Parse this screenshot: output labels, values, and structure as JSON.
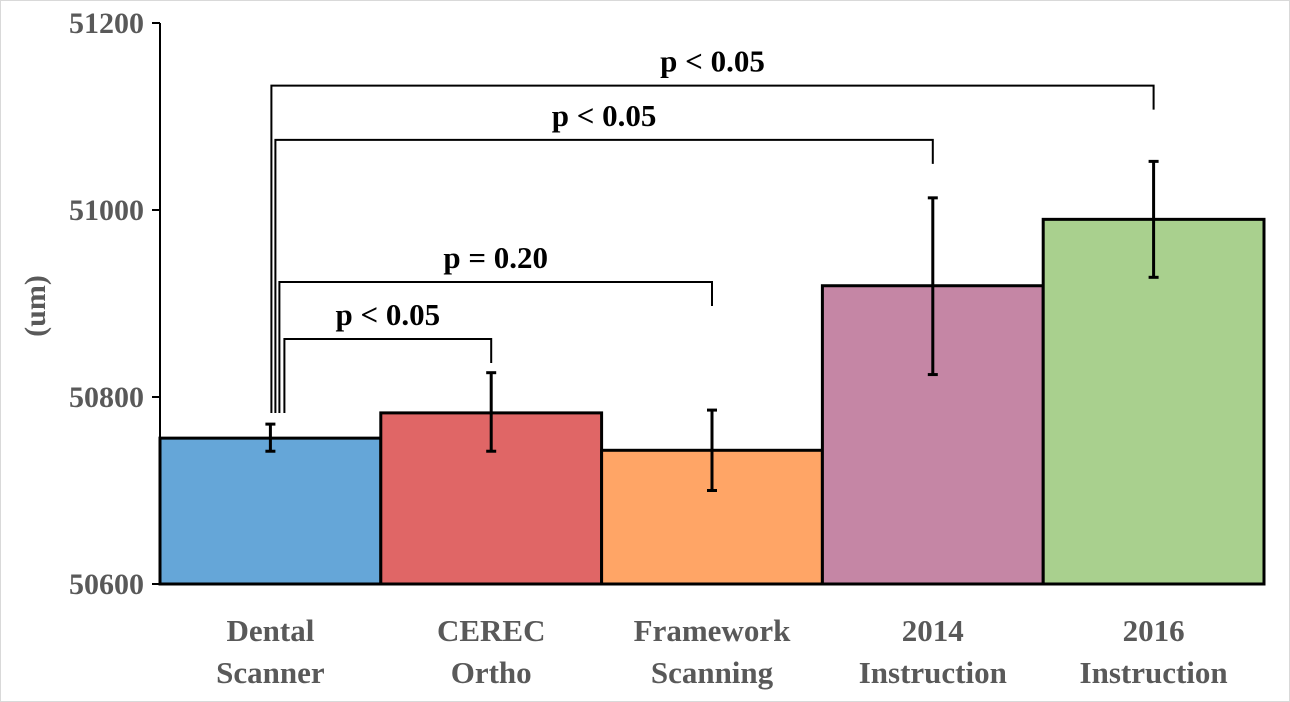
{
  "chart_data": {
    "type": "bar",
    "title": "",
    "xlabel": "",
    "ylabel": "(um)",
    "ylim": [
      50600,
      51200
    ],
    "yticks": [
      "50600",
      "50800",
      "51000",
      "51200"
    ],
    "grid": false,
    "categories": [
      [
        "Dental",
        "Scanner"
      ],
      [
        "CEREC",
        "Ortho"
      ],
      [
        "Framework",
        "Scanning"
      ],
      [
        "2014",
        "Instruction"
      ],
      [
        "2016",
        "Instruction"
      ]
    ],
    "values": [
      50756,
      50783,
      50743,
      50919,
      50990
    ],
    "errors": [
      [
        50742,
        50771
      ],
      [
        50742,
        50826
      ],
      [
        50700,
        50786
      ],
      [
        50824,
        51013
      ],
      [
        50928,
        51052
      ]
    ],
    "colors": [
      "#65a6d8",
      "#e06666",
      "#ffa566",
      "#c586a5",
      "#a9d08e"
    ],
    "annotations": [
      {
        "text": "p < 0.05",
        "from": 0,
        "to": 1,
        "level": 50862
      },
      {
        "text": "p = 0.20",
        "from": 0,
        "to": 2,
        "level": 50923
      },
      {
        "text": "p < 0.05",
        "from": 0,
        "to": 3,
        "level": 51075
      },
      {
        "text": "p < 0.05",
        "from": 0,
        "to": 4,
        "level": 51133
      }
    ]
  }
}
